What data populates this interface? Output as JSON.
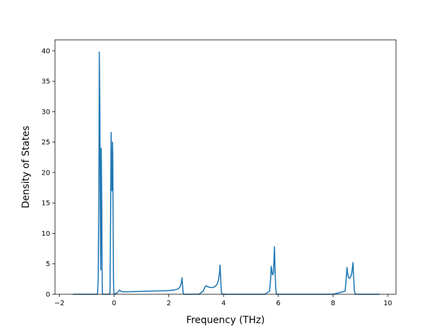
{
  "chart_data": {
    "type": "line",
    "title": "",
    "xlabel": "Frequency (THz)",
    "ylabel": "Density of States",
    "xlim": [
      -2.16,
      10.3
    ],
    "ylim": [
      0,
      41.8
    ],
    "xticks": [
      -2,
      0,
      2,
      4,
      6,
      8,
      10
    ],
    "yticks": [
      0,
      5,
      10,
      15,
      20,
      25,
      30,
      35,
      40
    ],
    "grid": false,
    "series": [
      {
        "color": "#1f77b4",
        "x": [
          -1.5,
          -0.62,
          -0.6,
          -0.58,
          -0.56,
          -0.55,
          -0.54,
          -0.52,
          -0.5,
          -0.49,
          -0.48,
          -0.47,
          -0.45,
          -0.44,
          -0.43,
          -0.41,
          -0.4,
          -0.39,
          -0.36,
          -0.33,
          -0.3,
          -0.25,
          -0.2,
          -0.18,
          -0.16,
          -0.15,
          -0.14,
          -0.12,
          -0.11,
          -0.1,
          -0.09,
          -0.08,
          -0.07,
          -0.06,
          -0.05,
          -0.04,
          -0.03,
          -0.02,
          -0.01,
          0.0,
          0.01,
          0.02,
          0.03,
          0.05,
          0.1,
          0.15,
          0.2,
          0.25,
          0.3,
          0.35,
          0.4,
          0.5,
          0.8,
          1.2,
          1.6,
          2.0,
          2.2,
          2.35,
          2.42,
          2.46,
          2.48,
          2.5,
          2.52,
          2.55,
          2.6,
          2.7,
          2.9,
          3.1,
          3.25,
          3.3,
          3.35,
          3.4,
          3.5,
          3.6,
          3.7,
          3.78,
          3.82,
          3.85,
          3.87,
          3.89,
          3.92,
          3.95,
          4.0,
          4.5,
          5.0,
          5.5,
          5.68,
          5.72,
          5.74,
          5.76,
          5.78,
          5.8,
          5.82,
          5.84,
          5.86,
          5.88,
          5.9,
          5.92,
          5.94,
          5.97,
          6.0,
          6.5,
          7.0,
          7.5,
          8.0,
          8.44,
          8.48,
          8.51,
          8.53,
          8.56,
          8.6,
          8.64,
          8.68,
          8.71,
          8.73,
          8.75,
          8.78,
          8.82,
          8.85,
          9.2,
          9.7
        ],
        "y": [
          0,
          0,
          0.3,
          3,
          15,
          25,
          39.8,
          30,
          10,
          4,
          10,
          24,
          14,
          5,
          0,
          0,
          0,
          0,
          0,
          0,
          0,
          0,
          0,
          0,
          0,
          0.5,
          6,
          20,
          26.6,
          22,
          19,
          17,
          19,
          25,
          23,
          15,
          6,
          2,
          0.5,
          0,
          0,
          0,
          0,
          0.1,
          0.2,
          0.4,
          0.7,
          0.5,
          0.4,
          0.4,
          0.4,
          0.4,
          0.45,
          0.5,
          0.55,
          0.6,
          0.7,
          0.9,
          1.3,
          2.0,
          2.7,
          1.5,
          0.3,
          0,
          0,
          0,
          0,
          0,
          0.5,
          1.0,
          1.4,
          1.3,
          1.1,
          1.1,
          1.3,
          1.8,
          2.5,
          3.5,
          4.8,
          3,
          0.3,
          0,
          0,
          0,
          0,
          0,
          0.5,
          2.5,
          4.6,
          4.0,
          3.3,
          3.2,
          3.5,
          5.5,
          7.8,
          4,
          1.5,
          0.4,
          0,
          0,
          0,
          0,
          0,
          0,
          0,
          0.5,
          2.5,
          4.4,
          3.5,
          2.8,
          2.6,
          2.8,
          3.4,
          4.5,
          5.2,
          3,
          0.5,
          0,
          0,
          0,
          0
        ]
      }
    ]
  }
}
